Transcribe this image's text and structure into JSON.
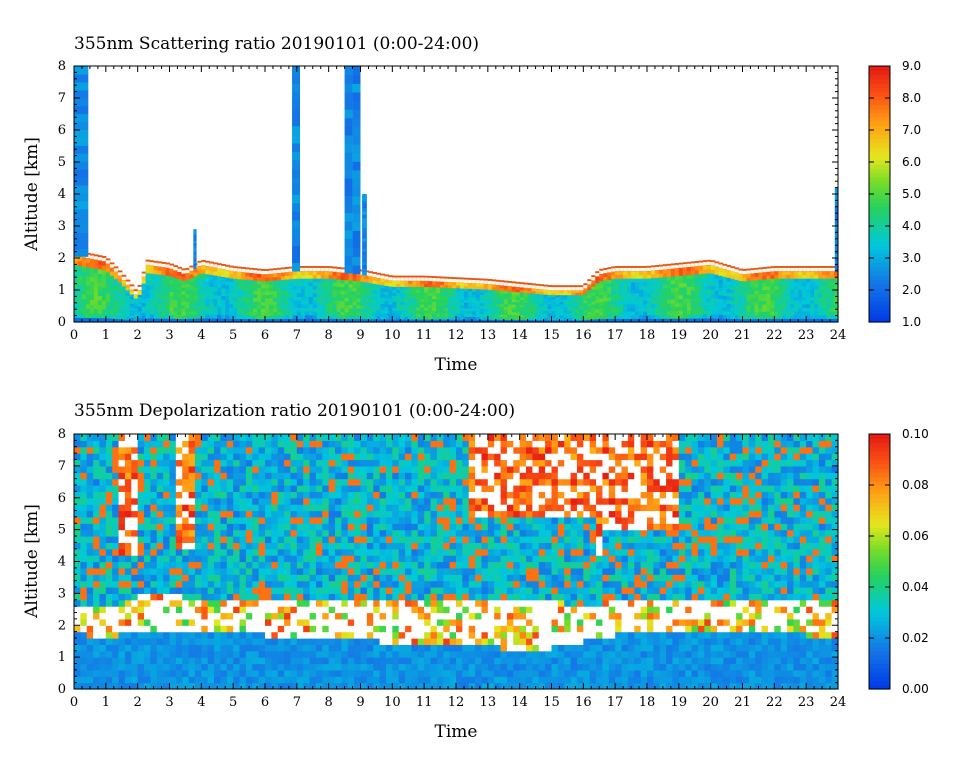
{
  "chart_data": [
    {
      "type": "heatmap",
      "title": "355nm Scattering ratio  20190101 (0:00-24:00)",
      "xlabel": "Time",
      "ylabel": "Altitude [km]",
      "xlim": [
        0,
        24
      ],
      "ylim": [
        0,
        8
      ],
      "x_ticks": [
        "0",
        "1",
        "2",
        "3",
        "4",
        "5",
        "6",
        "7",
        "8",
        "9",
        "10",
        "11",
        "12",
        "13",
        "14",
        "15",
        "16",
        "17",
        "18",
        "19",
        "20",
        "21",
        "22",
        "23",
        "24"
      ],
      "y_ticks": [
        "0",
        "1",
        "2",
        "3",
        "4",
        "5",
        "6",
        "7",
        "8"
      ],
      "colorbar": {
        "range": [
          1.0,
          9.0
        ],
        "ticks": [
          "1.0",
          "2.0",
          "3.0",
          "4.0",
          "5.0",
          "6.0",
          "7.0",
          "8.0",
          "9.0"
        ]
      },
      "cloud_top_km": [
        [
          0.0,
          2.1
        ],
        [
          0.5,
          2.0
        ],
        [
          1.0,
          1.9
        ],
        [
          1.5,
          1.4
        ],
        [
          2.0,
          0.8
        ],
        [
          2.3,
          1.8
        ],
        [
          3.0,
          1.7
        ],
        [
          3.5,
          1.5
        ],
        [
          4.0,
          1.8
        ],
        [
          5.0,
          1.6
        ],
        [
          6.0,
          1.5
        ],
        [
          7.0,
          1.6
        ],
        [
          8.0,
          1.6
        ],
        [
          9.0,
          1.5
        ],
        [
          10.0,
          1.3
        ],
        [
          11.0,
          1.3
        ],
        [
          12.0,
          1.25
        ],
        [
          13.0,
          1.2
        ],
        [
          14.0,
          1.1
        ],
        [
          15.0,
          1.0
        ],
        [
          16.0,
          1.0
        ],
        [
          16.5,
          1.5
        ],
        [
          17.0,
          1.6
        ],
        [
          18.0,
          1.6
        ],
        [
          19.0,
          1.7
        ],
        [
          20.0,
          1.8
        ],
        [
          21.0,
          1.5
        ],
        [
          22.0,
          1.6
        ],
        [
          23.0,
          1.6
        ],
        [
          24.0,
          1.6
        ]
      ],
      "plumes": [
        {
          "x0": 0.0,
          "x1": 0.45,
          "top": 8.0
        },
        {
          "x0": 3.75,
          "x1": 3.85,
          "top": 2.9
        },
        {
          "x0": 6.85,
          "x1": 7.1,
          "top": 8.0
        },
        {
          "x0": 8.5,
          "x1": 8.75,
          "top": 8.0
        },
        {
          "x0": 8.75,
          "x1": 9.0,
          "top": 8.0
        },
        {
          "x0": 9.05,
          "x1": 9.2,
          "top": 4.0
        },
        {
          "x0": 23.9,
          "x1": 24.0,
          "top": 4.2
        }
      ]
    },
    {
      "type": "heatmap",
      "title": "355nm Depolarization ratio  20190101 (0:00-24:00)",
      "xlabel": "Time",
      "ylabel": "Altitude [km]",
      "xlim": [
        0,
        24
      ],
      "ylim": [
        0,
        8
      ],
      "x_ticks": [
        "0",
        "1",
        "2",
        "3",
        "4",
        "5",
        "6",
        "7",
        "8",
        "9",
        "10",
        "11",
        "12",
        "13",
        "14",
        "15",
        "16",
        "17",
        "18",
        "19",
        "20",
        "21",
        "22",
        "23",
        "24"
      ],
      "y_ticks": [
        "0",
        "1",
        "2",
        "3",
        "4",
        "5",
        "6",
        "7",
        "8"
      ],
      "colorbar": {
        "range": [
          0.0,
          0.1
        ],
        "ticks": [
          "0.00",
          "0.02",
          "0.04",
          "0.06",
          "0.08",
          "0.10"
        ]
      },
      "cloud_band_km": [
        [
          0.0,
          1.8,
          2.6
        ],
        [
          1.0,
          1.6,
          2.5
        ],
        [
          2.0,
          1.9,
          2.9
        ],
        [
          3.0,
          1.9,
          3.0
        ],
        [
          4.0,
          1.8,
          2.8
        ],
        [
          5.0,
          1.8,
          2.8
        ],
        [
          6.0,
          1.7,
          2.9
        ],
        [
          7.0,
          1.6,
          2.7
        ],
        [
          8.0,
          1.6,
          2.8
        ],
        [
          9.0,
          1.7,
          2.9
        ],
        [
          10.0,
          1.4,
          2.7
        ],
        [
          11.0,
          1.5,
          2.9
        ],
        [
          12.0,
          1.4,
          2.8
        ],
        [
          13.0,
          1.4,
          2.9
        ],
        [
          14.0,
          1.2,
          2.8
        ],
        [
          15.0,
          1.3,
          2.8
        ],
        [
          16.0,
          1.5,
          2.6
        ],
        [
          17.0,
          1.7,
          2.8
        ],
        [
          18.0,
          1.8,
          2.8
        ],
        [
          19.0,
          1.9,
          2.8
        ],
        [
          20.0,
          1.8,
          2.9
        ],
        [
          21.0,
          1.7,
          2.8
        ],
        [
          22.0,
          1.8,
          2.9
        ],
        [
          23.0,
          1.7,
          2.9
        ],
        [
          24.0,
          1.7,
          2.9
        ]
      ],
      "high_depol_regions": [
        {
          "x0": 1.5,
          "x1": 2.0,
          "y0": 4.2,
          "y1": 8.0
        },
        {
          "x0": 3.2,
          "x1": 3.8,
          "y0": 4.5,
          "y1": 8.0
        },
        {
          "x0": 12.5,
          "x1": 16.5,
          "y0": 5.5,
          "y1": 8.0
        },
        {
          "x0": 16.5,
          "x1": 16.7,
          "y0": 4.2,
          "y1": 8.0
        },
        {
          "x0": 16.7,
          "x1": 19.0,
          "y0": 5.0,
          "y1": 8.0
        }
      ]
    }
  ]
}
